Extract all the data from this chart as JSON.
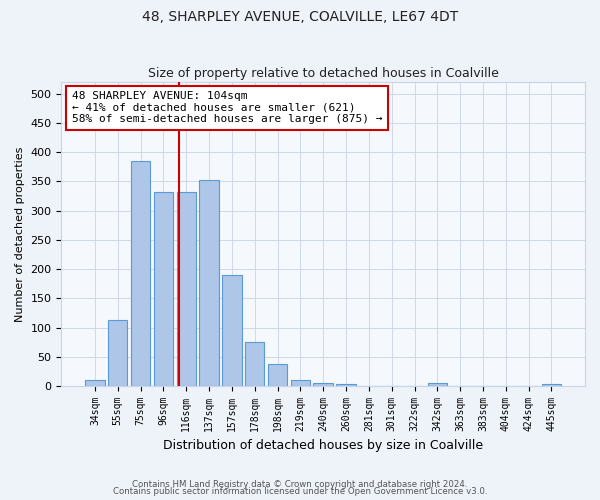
{
  "title1": "48, SHARPLEY AVENUE, COALVILLE, LE67 4DT",
  "title2": "Size of property relative to detached houses in Coalville",
  "xlabel": "Distribution of detached houses by size in Coalville",
  "ylabel": "Number of detached properties",
  "bar_labels": [
    "34sqm",
    "55sqm",
    "75sqm",
    "96sqm",
    "116sqm",
    "137sqm",
    "157sqm",
    "178sqm",
    "198sqm",
    "219sqm",
    "240sqm",
    "260sqm",
    "281sqm",
    "301sqm",
    "322sqm",
    "342sqm",
    "363sqm",
    "383sqm",
    "404sqm",
    "424sqm",
    "445sqm"
  ],
  "bar_values": [
    10,
    114,
    385,
    332,
    332,
    352,
    190,
    76,
    38,
    10,
    6,
    3,
    0,
    0,
    0,
    5,
    0,
    0,
    0,
    0,
    4
  ],
  "bar_color": "#aec6e8",
  "bar_edge_color": "#5b9bd5",
  "vline_color": "#cc0000",
  "vline_x": 3.67,
  "annotation_text": "48 SHARPLEY AVENUE: 104sqm\n← 41% of detached houses are smaller (621)\n58% of semi-detached houses are larger (875) →",
  "annotation_box_color": "#ffffff",
  "annotation_box_edge": "#cc0000",
  "ylim": [
    0,
    520
  ],
  "yticks": [
    0,
    50,
    100,
    150,
    200,
    250,
    300,
    350,
    400,
    450,
    500
  ],
  "footer1": "Contains HM Land Registry data © Crown copyright and database right 2024.",
  "footer2": "Contains public sector information licensed under the Open Government Licence v3.0.",
  "bg_color": "#eef2f9",
  "plot_bg_color": "#f5f8fd",
  "grid_color": "#c8d4e8",
  "title_fontsize": 10,
  "subtitle_fontsize": 9,
  "annotation_fontsize": 8
}
